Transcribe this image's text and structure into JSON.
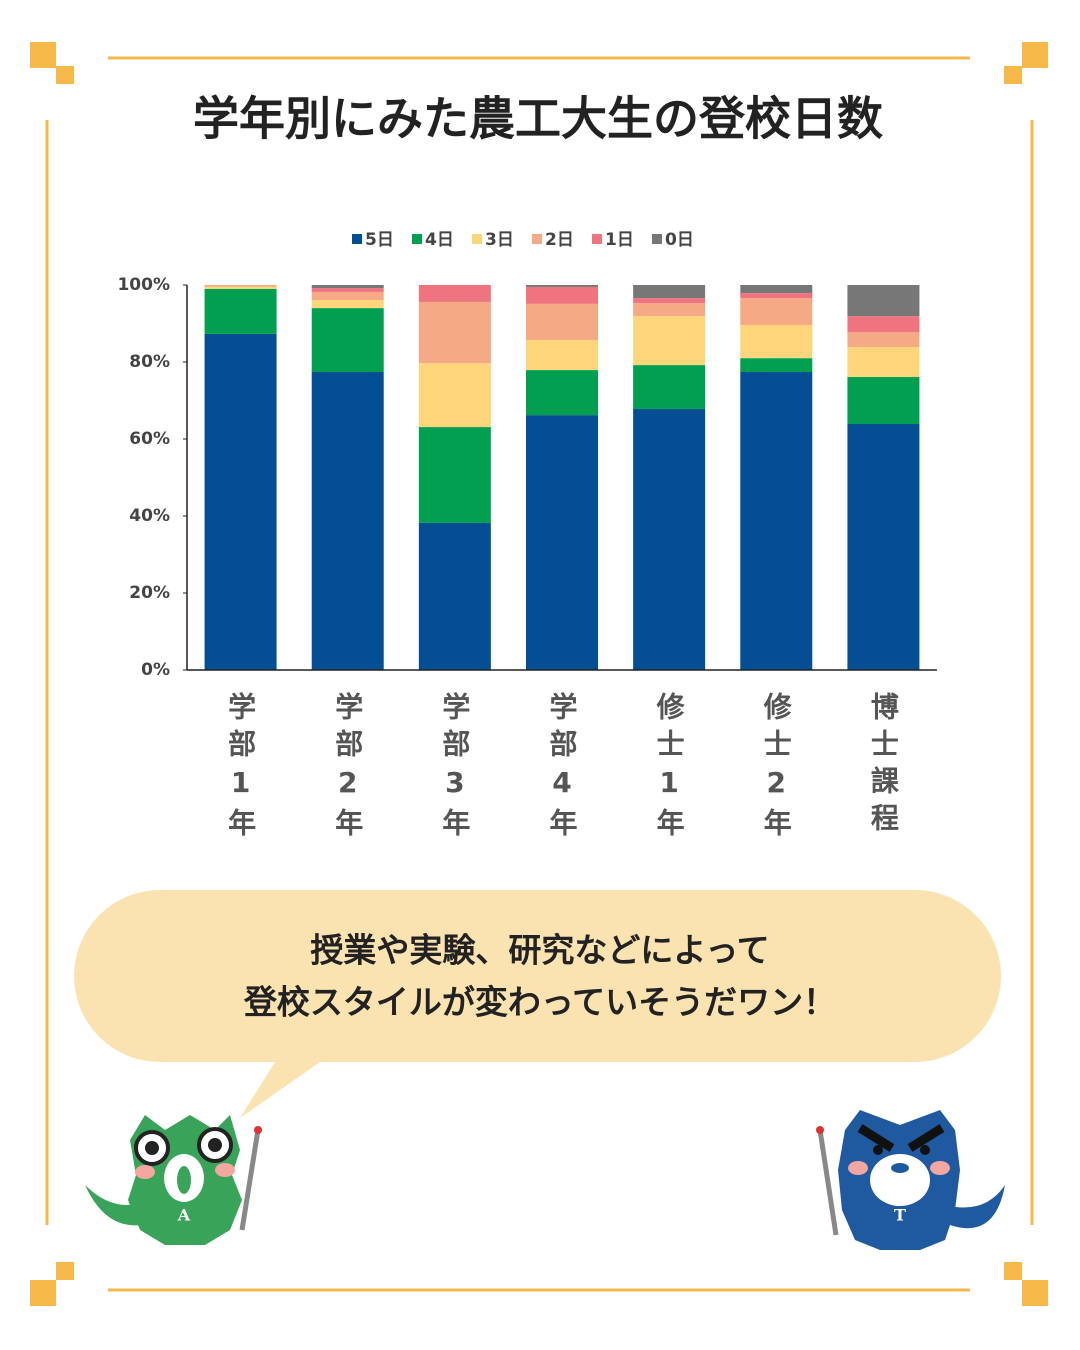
{
  "title": "学年別にみた農工大生の登校日数",
  "chart_data": {
    "type": "stacked-bar",
    "categories": [
      "学部1年",
      "学部2年",
      "学部3年",
      "学部4年",
      "修士1年",
      "修士2年",
      "博士課程"
    ],
    "series": [
      {
        "name": "5日",
        "color": "#044f93",
        "values": [
          87.3,
          77.4,
          38.2,
          66.2,
          67.8,
          77.4,
          63.9
        ]
      },
      {
        "name": "4日",
        "color": "#00a050",
        "values": [
          11.7,
          16.6,
          24.9,
          11.7,
          11.4,
          3.6,
          12.2
        ]
      },
      {
        "name": "3日",
        "color": "#fdd57a",
        "values": [
          0.6,
          2.1,
          16.6,
          7.8,
          12.7,
          8.6,
          7.8
        ]
      },
      {
        "name": "2日",
        "color": "#f5a985",
        "values": [
          0.4,
          2.1,
          15.9,
          9.4,
          3.4,
          7.0,
          3.9
        ]
      },
      {
        "name": "1日",
        "color": "#f07480",
        "values": [
          0,
          1.0,
          4.4,
          4.4,
          1.3,
          1.3,
          4.1
        ]
      },
      {
        "name": "0日",
        "color": "#777777",
        "values": [
          0,
          0.8,
          0,
          0.5,
          3.4,
          2.1,
          8.1
        ]
      }
    ],
    "ylim": [
      0,
      100
    ],
    "yticks": [
      {
        "value": 0,
        "label": "0%"
      },
      {
        "value": 20,
        "label": "20%"
      },
      {
        "value": 40,
        "label": "40%"
      },
      {
        "value": 60,
        "label": "60%"
      },
      {
        "value": 80,
        "label": "80%"
      },
      {
        "value": 100,
        "label": "100%"
      }
    ],
    "legend": "top"
  },
  "speech": [
    "授業や実験、研究などによって",
    "登校スタイルが変わっていそうだワン！"
  ],
  "mascots": [
    {
      "label": "A"
    },
    {
      "label": "T"
    }
  ]
}
